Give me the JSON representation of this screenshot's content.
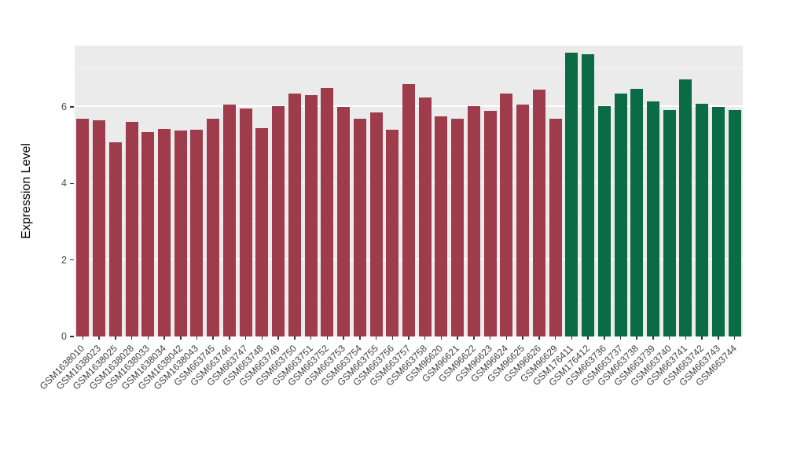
{
  "chart_data": {
    "type": "bar",
    "title": "",
    "xlabel": "",
    "ylabel": "Expression Level",
    "ylim": [
      0,
      7.6
    ],
    "yticks": [
      0,
      2,
      4,
      6
    ],
    "yticks_minor": [
      1,
      3,
      5,
      7
    ],
    "grid": "white major and minor horizontal lines on gray panel",
    "legend": "none",
    "panel_bg": "#EBEBEB",
    "group_colors": [
      "#9E3C4C",
      "#0A6B45"
    ],
    "categories": [
      "GSM1638010",
      "GSM1638023",
      "GSM1638025",
      "GSM1638028",
      "GSM1638033",
      "GSM1638034",
      "GSM1638042",
      "GSM1638043",
      "GSM663745",
      "GSM663746",
      "GSM663747",
      "GSM663748",
      "GSM663749",
      "GSM663750",
      "GSM663751",
      "GSM663752",
      "GSM663753",
      "GSM663754",
      "GSM663755",
      "GSM663756",
      "GSM663757",
      "GSM663758",
      "GSM96620",
      "GSM96621",
      "GSM96622",
      "GSM96623",
      "GSM96624",
      "GSM96625",
      "GSM96626",
      "GSM96629",
      "GSM176411",
      "GSM176412",
      "GSM663736",
      "GSM663737",
      "GSM663738",
      "GSM663739",
      "GSM663740",
      "GSM663741",
      "GSM663742",
      "GSM663743",
      "GSM663744"
    ],
    "values": [
      5.68,
      5.65,
      5.08,
      5.6,
      5.35,
      5.42,
      5.38,
      5.4,
      5.7,
      6.05,
      5.95,
      5.45,
      6.02,
      6.35,
      6.3,
      6.5,
      6.0,
      5.68,
      5.85,
      5.4,
      6.6,
      6.25,
      5.75,
      5.68,
      6.02,
      5.9,
      6.35,
      6.05,
      6.45,
      5.68,
      7.42,
      7.38,
      6.02,
      6.35,
      6.48,
      6.15,
      5.92,
      6.72,
      6.08,
      6.0,
      5.92
    ],
    "groups": [
      0,
      0,
      0,
      0,
      0,
      0,
      0,
      0,
      0,
      0,
      0,
      0,
      0,
      0,
      0,
      0,
      0,
      0,
      0,
      0,
      0,
      0,
      0,
      0,
      0,
      0,
      0,
      0,
      0,
      0,
      1,
      1,
      1,
      1,
      1,
      1,
      1,
      1,
      1,
      1,
      1
    ]
  }
}
